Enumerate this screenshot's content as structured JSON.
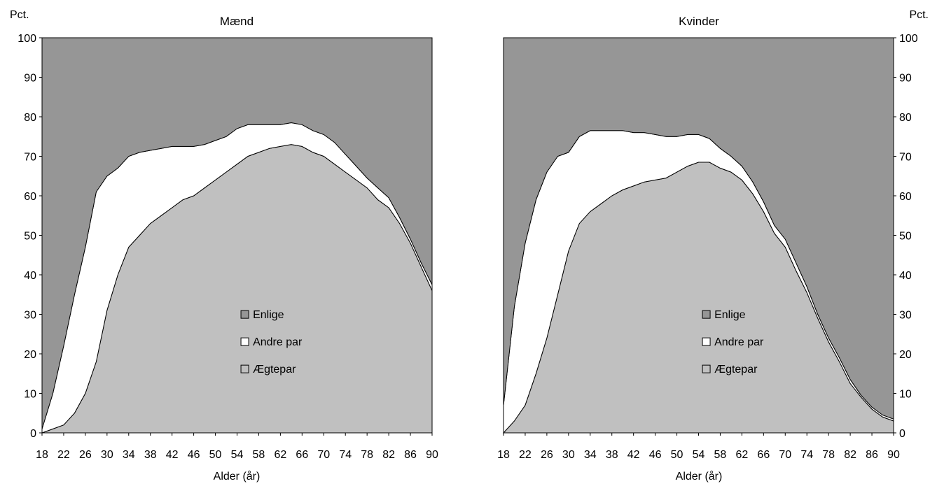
{
  "shared": {
    "y_unit": "Pct.",
    "xlabel": "Alder (år)",
    "legend": {
      "entries": [
        "Enlige",
        "Andre par",
        "Ægtepar"
      ],
      "colors": [
        "#969696",
        "#ffffff",
        "#c0c0c0"
      ]
    }
  },
  "chart_data": [
    {
      "type": "area",
      "title": "Mænd",
      "stacked": true,
      "ylim": [
        0,
        100
      ],
      "xlim": [
        18,
        90
      ],
      "yticks": [
        0,
        10,
        20,
        30,
        40,
        50,
        60,
        70,
        80,
        90,
        100
      ],
      "xticks": [
        18,
        22,
        26,
        30,
        34,
        38,
        42,
        46,
        50,
        54,
        58,
        62,
        66,
        70,
        74,
        78,
        82,
        86,
        90
      ],
      "xlabel": "Alder (år)",
      "ylabel": "Pct.",
      "y_axis_side": "left",
      "legend_position": "center",
      "x": [
        18,
        20,
        22,
        24,
        26,
        28,
        30,
        32,
        34,
        36,
        38,
        40,
        42,
        44,
        46,
        48,
        50,
        52,
        54,
        56,
        58,
        60,
        62,
        64,
        66,
        68,
        70,
        72,
        74,
        76,
        78,
        80,
        82,
        84,
        86,
        88,
        90
      ],
      "series": [
        {
          "name": "Ægtepar",
          "values": [
            0,
            1,
            2,
            5,
            10,
            18,
            31,
            40,
            47,
            50,
            53,
            55,
            57,
            59,
            60,
            62,
            64,
            66,
            68,
            70,
            71,
            72,
            72.5,
            73,
            72.5,
            71,
            70,
            68,
            66,
            64,
            62,
            59,
            57,
            53,
            48,
            42,
            36
          ]
        },
        {
          "name": "Andre par",
          "values": [
            1,
            9,
            20,
            30,
            37,
            43,
            34,
            27,
            23,
            21,
            18.5,
            17,
            15.5,
            13.5,
            12.5,
            11,
            10,
            9,
            9,
            8,
            7,
            6,
            5.5,
            5.5,
            5.5,
            5.5,
            5.5,
            5.5,
            4.5,
            3.5,
            2.5,
            3,
            2.5,
            1.5,
            1,
            1,
            1.5
          ]
        },
        {
          "name": "Enlige",
          "values": [
            99,
            90,
            78,
            65,
            53,
            39,
            35,
            33,
            30,
            29,
            28.5,
            28,
            27.5,
            27.5,
            27.5,
            27,
            26,
            25,
            23,
            22,
            22,
            22,
            22,
            21.5,
            22,
            23.5,
            24.5,
            26.5,
            29.5,
            32.5,
            35.5,
            38,
            40.5,
            45.5,
            51,
            57,
            62.5
          ]
        }
      ]
    },
    {
      "type": "area",
      "title": "Kvinder",
      "stacked": true,
      "ylim": [
        0,
        100
      ],
      "xlim": [
        18,
        90
      ],
      "yticks": [
        0,
        10,
        20,
        30,
        40,
        50,
        60,
        70,
        80,
        90,
        100
      ],
      "xticks": [
        18,
        22,
        26,
        30,
        34,
        38,
        42,
        46,
        50,
        54,
        58,
        62,
        66,
        70,
        74,
        78,
        82,
        86,
        90
      ],
      "xlabel": "Alder (år)",
      "ylabel": "Pct.",
      "y_axis_side": "right",
      "legend_position": "center",
      "x": [
        18,
        20,
        22,
        24,
        26,
        28,
        30,
        32,
        34,
        36,
        38,
        40,
        42,
        44,
        46,
        48,
        50,
        52,
        54,
        56,
        58,
        60,
        62,
        64,
        66,
        68,
        70,
        72,
        74,
        76,
        78,
        80,
        82,
        84,
        86,
        88,
        90
      ],
      "series": [
        {
          "name": "Ægtepar",
          "values": [
            0,
            3,
            7,
            15,
            24,
            35,
            46,
            53,
            56,
            58,
            60,
            61.5,
            62.5,
            63.5,
            64,
            64.5,
            66,
            67.5,
            68.5,
            68.5,
            67,
            66,
            64,
            60.5,
            56,
            50.5,
            47,
            41,
            35.5,
            29,
            23,
            18,
            12.5,
            9,
            6,
            4,
            3
          ]
        },
        {
          "name": "Andre par",
          "values": [
            7,
            29,
            41,
            44,
            42,
            35,
            25,
            22,
            20.5,
            18.5,
            16.5,
            15,
            13.5,
            12.5,
            11.5,
            10.5,
            9,
            8,
            7,
            6,
            5,
            4,
            3.5,
            3,
            2.5,
            2,
            2,
            2,
            1.5,
            1,
            1,
            1,
            1,
            0.5,
            0.5,
            0.5,
            0.5
          ]
        },
        {
          "name": "Enlige",
          "values": [
            93,
            68,
            52,
            41,
            34,
            30,
            29,
            25,
            23.5,
            23.5,
            23.5,
            23.5,
            24,
            24,
            24.5,
            25,
            25,
            24.5,
            24.5,
            25.5,
            28,
            30,
            32.5,
            36.5,
            41.5,
            47.5,
            51,
            57,
            63,
            70,
            76,
            81,
            86.5,
            90.5,
            93.5,
            95.5,
            96.5
          ]
        }
      ]
    }
  ]
}
